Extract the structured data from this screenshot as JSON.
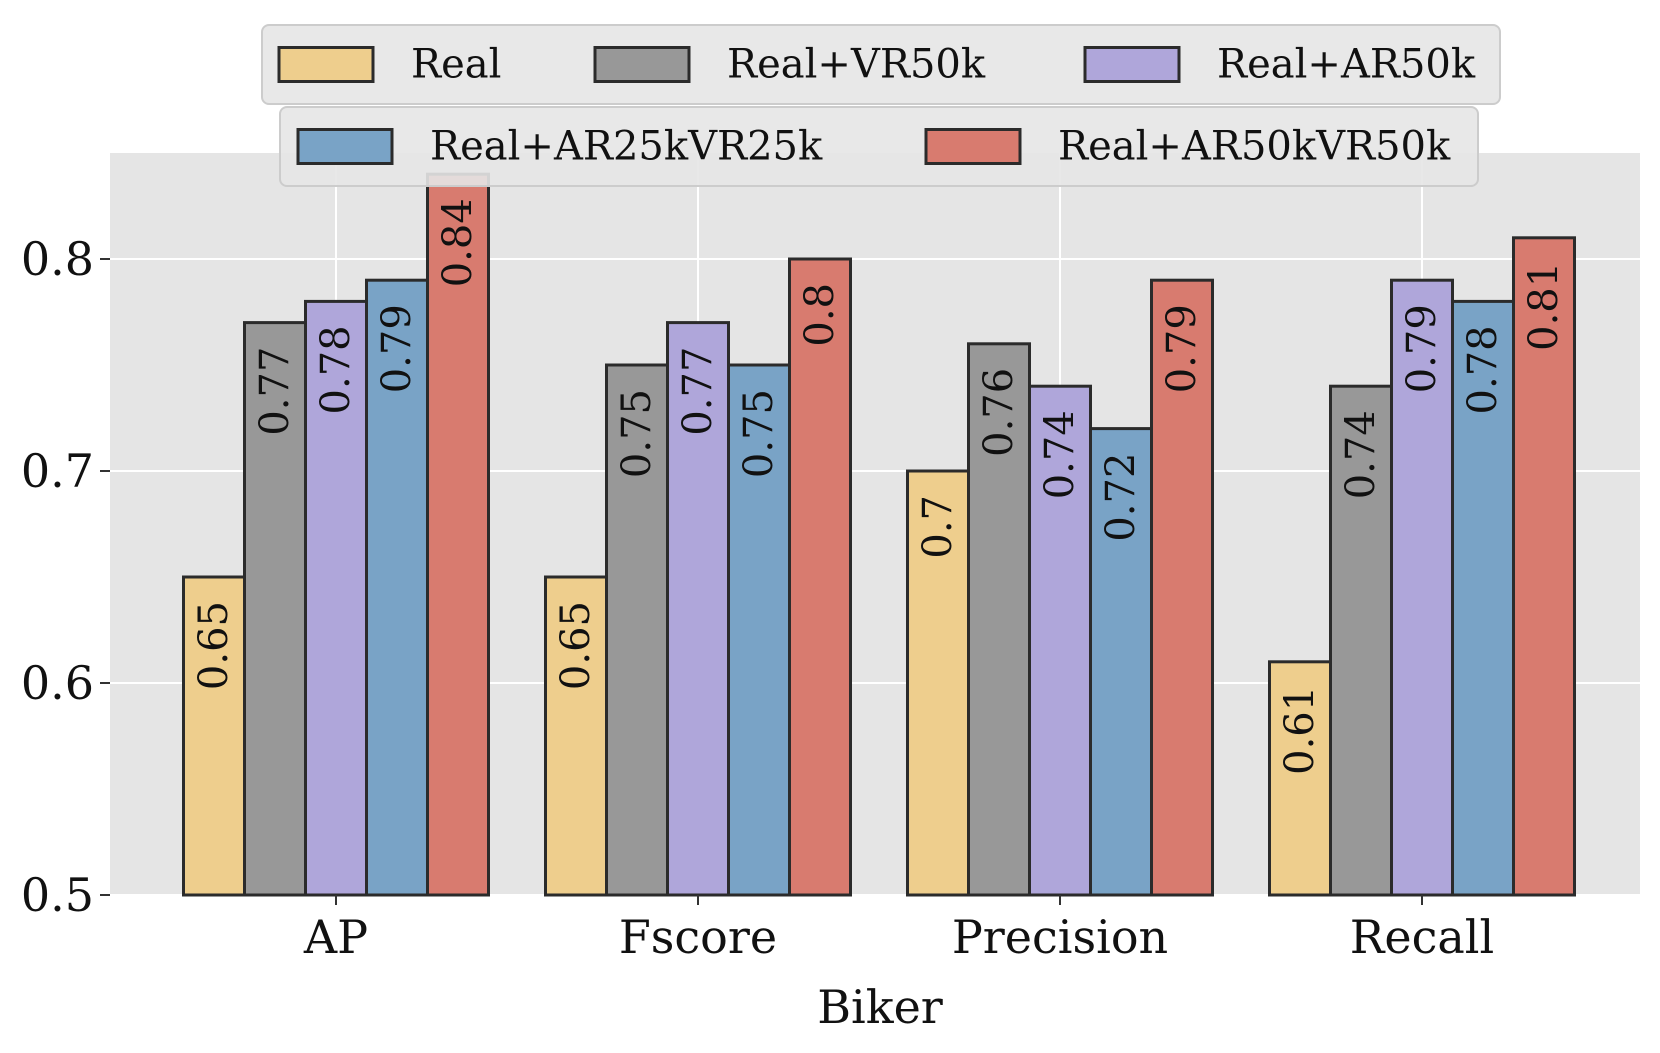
{
  "chart_data": {
    "type": "bar",
    "title": "",
    "xlabel": "Biker",
    "ylabel": "",
    "ylim": [
      0.5,
      0.85
    ],
    "yticks": [
      0.5,
      0.6,
      0.7,
      0.8
    ],
    "ytick_labels": [
      "0.5",
      "0.6",
      "0.7",
      "0.8"
    ],
    "grid": true,
    "legend_position": "top-center",
    "categories": [
      "AP",
      "Fscore",
      "Precision",
      "Recall"
    ],
    "series": [
      {
        "name": "Real",
        "color": "#EECE8D",
        "values": [
          0.65,
          0.65,
          0.7,
          0.61
        ],
        "labels": [
          "0.65",
          "0.65",
          "0.7",
          "0.61"
        ]
      },
      {
        "name": "Real+VR50k",
        "color": "#989898",
        "values": [
          0.77,
          0.75,
          0.76,
          0.74
        ],
        "labels": [
          "0.77",
          "0.75",
          "0.76",
          "0.74"
        ]
      },
      {
        "name": "Real+AR50k",
        "color": "#AFA6DA",
        "values": [
          0.78,
          0.77,
          0.74,
          0.79
        ],
        "labels": [
          "0.78",
          "0.77",
          "0.74",
          "0.79"
        ]
      },
      {
        "name": "Real+AR25kVR25k",
        "color": "#79A3C6",
        "values": [
          0.79,
          0.75,
          0.72,
          0.78
        ],
        "labels": [
          "0.79",
          "0.75",
          "0.72",
          "0.78"
        ]
      },
      {
        "name": "Real+AR50kVR50k",
        "color": "#D87B6F",
        "values": [
          0.84,
          0.8,
          0.79,
          0.81
        ],
        "labels": [
          "0.84",
          "0.8",
          "0.79",
          "0.81"
        ]
      }
    ]
  },
  "colors": {
    "plot_background": "#E5E5E5",
    "grid": "#FFFFFF",
    "bar_edge": "#2B2B2B",
    "legend_background": "#E5E5E5",
    "legend_border": "#CCCCCC"
  }
}
